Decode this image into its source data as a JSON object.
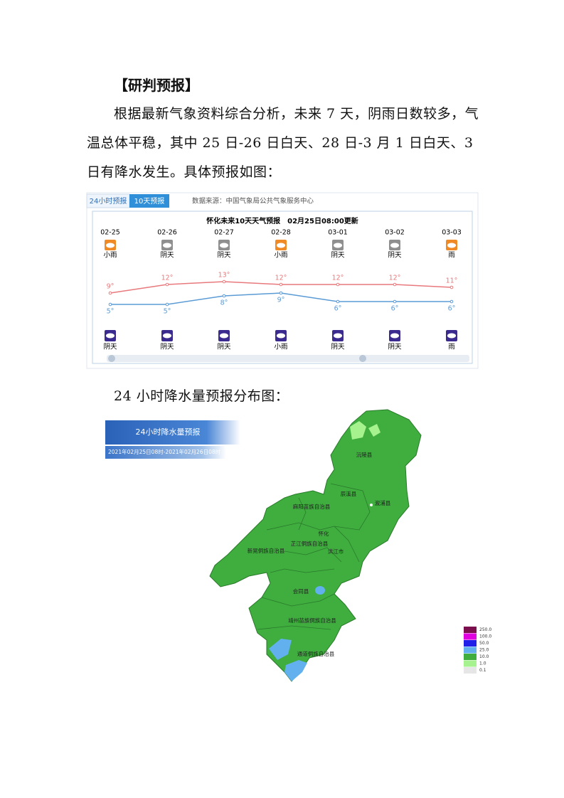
{
  "heading": "【研判预报】",
  "paragraph": "根据最新气象资料综合分析，未来 7 天，阴雨日数较多，气温总体平稳，其中 25 日-26 日白天、28 日-3 月 1 日白天、3 日有降水发生。具体预报如图：",
  "forecast": {
    "tabs": [
      "24小时预报",
      "10天预报"
    ],
    "source": "数据来源：中国气象局公共气象服务中心",
    "title": "怀化未来10天天气预报　02月25日08:00更新",
    "dates": [
      "02-25",
      "02-26",
      "02-27",
      "02-28",
      "03-01",
      "03-02",
      "03-03"
    ],
    "day_weather": [
      "小雨",
      "阴天",
      "阴天",
      "小雨",
      "阴天",
      "阴天",
      "雨"
    ],
    "night_weather": [
      "阴天",
      "阴天",
      "阴天",
      "小雨",
      "阴天",
      "阴天",
      "雨"
    ],
    "chart": {
      "type": "line",
      "series": [
        {
          "color": "#e8797d",
          "values": [
            9,
            12,
            13,
            12,
            12,
            12,
            11
          ],
          "value_labels": [
            "9°",
            "12°",
            "13°",
            "12°",
            "12°",
            "12°",
            "11°"
          ]
        },
        {
          "color": "#5b9bd5",
          "values": [
            5,
            5,
            8,
            9,
            6,
            6,
            6
          ],
          "value_labels": [
            "5°",
            "5°",
            "8°",
            "9°",
            "6°",
            "6°",
            "6°"
          ]
        }
      ]
    }
  },
  "caption": "24 小时降水量预报分布图：",
  "map": {
    "title": "24小时降水量预报",
    "period": "2021年02月25日08时-2021年02月26日08时",
    "counties": [
      "沅陵县",
      "辰溪县",
      "溆浦县",
      "麻阳苗族自治县",
      "怀化",
      "芷江侗族自治县",
      "洪江市",
      "新晃侗族自治县",
      "会同县",
      "靖州苗族侗族自治县",
      "通道侗族自治县"
    ],
    "legend": [
      {
        "value": 250,
        "label": "250.0",
        "color": "#7b0f4e"
      },
      {
        "value": 100,
        "label": "100.0",
        "color": "#e000e0"
      },
      {
        "value": 50,
        "label": "50.0",
        "color": "#2020e8"
      },
      {
        "value": 25,
        "label": "25.0",
        "color": "#62b0ee"
      },
      {
        "value": 10,
        "label": "10.0",
        "color": "#3fae3f"
      },
      {
        "value": 1,
        "label": "1.0",
        "color": "#a6f28f"
      },
      {
        "value": 0.1,
        "label": "0.1",
        "color": "#e6e6e6"
      }
    ]
  }
}
